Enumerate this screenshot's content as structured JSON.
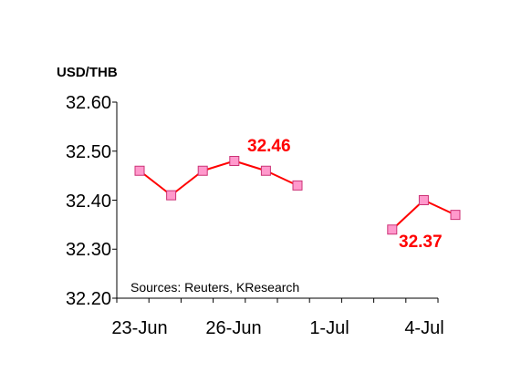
{
  "chart_data": {
    "type": "line",
    "unit_label": "USD/THB",
    "source_note": "Sources: Reuters, KResearch",
    "ylim": [
      32.2,
      32.6
    ],
    "yticks": [
      "32.60",
      "32.50",
      "32.40",
      "32.30",
      "32.20"
    ],
    "xticks": [
      "23-Jun",
      "26-Jun",
      "1-Jul",
      "4-Jul"
    ],
    "grid": false,
    "series": [
      {
        "values": [
          32.46,
          32.41,
          32.46,
          32.48,
          32.46,
          32.43,
          null,
          null,
          32.34,
          32.4,
          32.37
        ]
      }
    ],
    "annotations": [
      "32.46",
      "32.37"
    ],
    "colors": {
      "line": "#ff0000",
      "marker_fill": "#ff99cc",
      "marker_stroke": "#cc3377",
      "annotation": "#ff0000"
    }
  }
}
